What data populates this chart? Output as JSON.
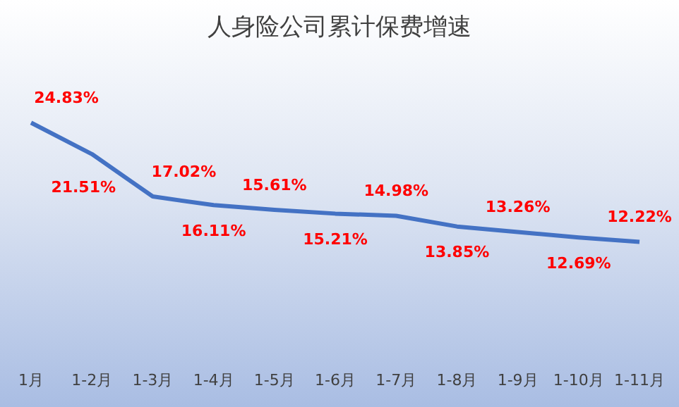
{
  "chart_data": {
    "type": "line",
    "title": "人身险公司累计保费增速",
    "categories": [
      "1月",
      "1-2月",
      "1-3月",
      "1-4月",
      "1-5月",
      "1-6月",
      "1-7月",
      "1-8月",
      "1-9月",
      "1-10月",
      "1-11月"
    ],
    "series": [
      {
        "color": "#4472c4",
        "values": [
          24.83,
          21.51,
          17.02,
          16.11,
          15.61,
          15.21,
          14.98,
          13.85,
          13.26,
          12.69,
          12.22
        ],
        "value_labels": [
          "24.83%",
          "21.51%",
          "17.02%",
          "16.11%",
          "15.61%",
          "15.21%",
          "14.98%",
          "13.85%",
          "13.26%",
          "12.69%",
          "12.22%"
        ]
      }
    ],
    "marker": "none",
    "grid": false,
    "legend": false
  }
}
